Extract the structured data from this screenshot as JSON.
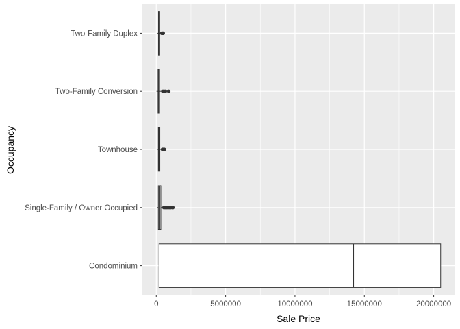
{
  "chart_data": {
    "type": "boxplot",
    "orientation": "horizontal",
    "xlabel": "Sale Price",
    "ylabel": "Occupancy",
    "xlim": [
      -1000000,
      21500000
    ],
    "x_ticks": [
      0,
      5000000,
      10000000,
      15000000,
      20000000
    ],
    "x_tick_labels": [
      "0",
      "5000000",
      "10000000",
      "15000000",
      "20000000"
    ],
    "categories": [
      "Condominium",
      "Single-Family / Owner Occupied",
      "Townhouse",
      "Two-Family Conversion",
      "Two-Family Duplex"
    ],
    "boxes": [
      {
        "category": "Condominium",
        "min": 200000,
        "q1": 200000,
        "median": 14200000,
        "q3": 20500000,
        "max": 20500000,
        "outliers": []
      },
      {
        "category": "Single-Family / Owner Occupied",
        "min": 50000,
        "q1": 150000,
        "median": 230000,
        "q3": 330000,
        "max": 480000,
        "outliers": [
          550000,
          650000,
          750000,
          850000,
          950000,
          1050000,
          1200000
        ]
      },
      {
        "category": "Townhouse",
        "min": 80000,
        "q1": 150000,
        "median": 210000,
        "q3": 260000,
        "max": 380000,
        "outliers": [
          450000,
          520000,
          580000
        ]
      },
      {
        "category": "Two-Family Conversion",
        "min": 20000,
        "q1": 130000,
        "median": 190000,
        "q3": 240000,
        "max": 400000,
        "outliers": [
          480000,
          560000,
          650000,
          900000
        ]
      },
      {
        "category": "Two-Family Duplex",
        "min": 90000,
        "q1": 160000,
        "median": 210000,
        "q3": 250000,
        "max": 330000,
        "outliers": [
          400000,
          450000,
          500000
        ]
      }
    ],
    "grid": true,
    "panel_background": "#ebebeb",
    "grid_color": "#ffffff",
    "box_fill": "#ffffff",
    "line_color": "#333333"
  }
}
